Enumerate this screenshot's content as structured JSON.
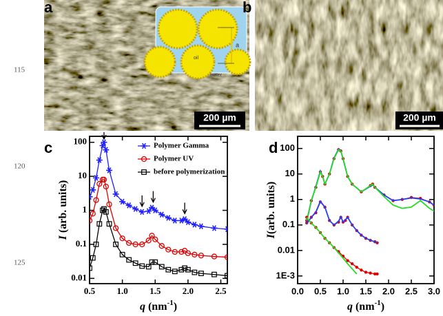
{
  "panel_labels": [
    "a",
    "b",
    "c",
    "d"
  ],
  "line_numbers": [
    "115",
    "120",
    "125"
  ],
  "scale_bars": [
    "200 µm",
    "200 µm"
  ],
  "inset": {
    "oil": "oil",
    "water": "water",
    "a": "a"
  },
  "chart_data": [
    {
      "type": "line",
      "x_label_parts": [
        "q",
        " (nm",
        "-1",
        ")"
      ],
      "y_label_parts": [
        "I",
        " (arb. units)"
      ],
      "log_y": true,
      "legend": "top-right",
      "xlim": [
        0.5,
        2.6
      ],
      "ylim": [
        0.007,
        150
      ],
      "xticks": [
        0.5,
        {
          "value": 1,
          "label": "1.0"
        },
        1.5,
        {
          "value": 2,
          "label": "2.0"
        },
        2.5
      ],
      "yticks": [
        0.01,
        0.1,
        1,
        10,
        100
      ],
      "arrows": [
        0.72,
        1.3,
        1.47,
        1.95
      ],
      "x": [
        0.5,
        0.55,
        0.6,
        0.65,
        0.7,
        0.72,
        0.75,
        0.8,
        0.9,
        1.0,
        1.1,
        1.2,
        1.3,
        1.4,
        1.45,
        1.5,
        1.6,
        1.7,
        1.8,
        1.9,
        1.95,
        2.0,
        2.1,
        2.2,
        2.4,
        2.6
      ],
      "series": [
        {
          "name": "Polymer Gamma",
          "color": "#1f1fff",
          "marker": "star",
          "values": [
            2.5,
            4,
            9,
            30,
            80,
            100,
            60,
            15,
            3,
            1.8,
            1.4,
            1.1,
            0.9,
            0.95,
            1.2,
            1.0,
            0.75,
            0.6,
            0.5,
            0.5,
            0.55,
            0.45,
            0.38,
            0.34,
            0.3,
            0.28
          ]
        },
        {
          "name": "Polymer UV",
          "color": "#e00000",
          "marker": "circle",
          "values": [
            0.5,
            0.8,
            2,
            6,
            8,
            8,
            5,
            1.5,
            0.3,
            0.15,
            0.11,
            0.1,
            0.1,
            0.13,
            0.18,
            0.14,
            0.09,
            0.07,
            0.06,
            0.06,
            0.065,
            0.055,
            0.05,
            0.047,
            0.044,
            0.042
          ]
        },
        {
          "name": "before polymerization",
          "color": "#000000",
          "marker": "square",
          "values": [
            0.02,
            0.04,
            0.1,
            0.4,
            1.0,
            1.1,
            0.9,
            0.4,
            0.1,
            0.05,
            0.035,
            0.028,
            0.023,
            0.022,
            0.03,
            0.03,
            0.022,
            0.018,
            0.016,
            0.018,
            0.02,
            0.018,
            0.015,
            0.014,
            0.013,
            0.012
          ]
        }
      ]
    },
    {
      "type": "line",
      "x_label_parts": [
        "q",
        " (nm",
        "-1",
        ")"
      ],
      "y_label_parts": [
        "I",
        "(arb. units)"
      ],
      "log_y": true,
      "xlim": [
        0,
        3
      ],
      "ylim": [
        0.0005,
        300
      ],
      "xticks": [
        {
          "value": 0,
          "label": "0.0"
        },
        0.5,
        {
          "value": 1,
          "label": "1.0"
        },
        1.5,
        {
          "value": 2,
          "label": "2.0"
        },
        2.5,
        {
          "value": 3,
          "label": "3.0"
        }
      ],
      "yticks": [
        {
          "value": 0.001,
          "label": "1E-3"
        },
        0.01,
        0.1,
        1,
        10,
        100
      ],
      "series": [
        {
          "color": "#e00000",
          "marker": "dot",
          "x": [
            0.2,
            0.3,
            0.4,
            0.5,
            0.55,
            0.6,
            0.7,
            0.8,
            0.9,
            0.95,
            1.0,
            1.1,
            1.2,
            1.4,
            1.6,
            1.65,
            1.7,
            1.9,
            2.1,
            2.3,
            2.5,
            2.7,
            2.9,
            3.0
          ],
          "values": [
            0.15,
            0.9,
            3,
            12,
            8,
            4,
            10,
            40,
            90,
            80,
            40,
            8,
            4,
            2,
            3.5,
            4,
            3,
            1.5,
            0.9,
            1.0,
            1.2,
            1.1,
            0.8,
            0.6
          ]
        },
        {
          "color": "#1f3fff",
          "marker": "none",
          "x": [
            0.2,
            0.3,
            0.4,
            0.5,
            0.55,
            0.6,
            0.7,
            0.8,
            0.9,
            0.95,
            1.0,
            1.1,
            1.2,
            1.4,
            1.6,
            1.65,
            1.7,
            1.9,
            2.1,
            2.3,
            2.5,
            2.7,
            2.9,
            3.0
          ],
          "values": [
            0.14,
            0.85,
            3.2,
            13,
            8,
            4,
            10,
            42,
            95,
            82,
            38,
            8,
            4,
            2,
            3.3,
            3.8,
            3,
            1.5,
            0.9,
            1.0,
            1.15,
            1.05,
            0.8,
            0.6
          ]
        },
        {
          "color": "#22dd22",
          "marker": "none",
          "x": [
            0.2,
            0.3,
            0.4,
            0.5,
            0.55,
            0.6,
            0.7,
            0.8,
            0.9,
            0.95,
            1.0,
            1.1,
            1.2,
            1.4,
            1.6,
            1.65,
            1.7,
            1.9,
            2.1,
            2.3,
            2.5,
            2.7,
            2.9,
            3.0
          ],
          "values": [
            0.15,
            0.9,
            3,
            12,
            8,
            4,
            10,
            40,
            90,
            80,
            40,
            8,
            4,
            2,
            3.5,
            4,
            3,
            1.3,
            0.6,
            0.45,
            0.5,
            0.9,
            0.45,
            0.35
          ]
        },
        {
          "color": "#e00000",
          "marker": "dot",
          "x": [
            0.2,
            0.3,
            0.4,
            0.5,
            0.6,
            0.7,
            0.8,
            0.9,
            0.95,
            1.0,
            1.05,
            1.1,
            1.2,
            1.3,
            1.4,
            1.5,
            1.6,
            1.7,
            1.75
          ],
          "values": [
            0.12,
            0.2,
            0.3,
            0.8,
            0.5,
            0.15,
            0.1,
            0.13,
            0.2,
            0.13,
            0.15,
            0.2,
            0.1,
            0.06,
            0.04,
            0.03,
            0.025,
            0.022,
            0.02
          ]
        },
        {
          "color": "#1f3fff",
          "marker": "none",
          "x": [
            0.2,
            0.3,
            0.4,
            0.5,
            0.6,
            0.7,
            0.8,
            0.9,
            0.95,
            1.0,
            1.05,
            1.1,
            1.2,
            1.3,
            1.4,
            1.5,
            1.6,
            1.7,
            1.75
          ],
          "values": [
            0.11,
            0.2,
            0.32,
            0.85,
            0.5,
            0.15,
            0.1,
            0.14,
            0.21,
            0.13,
            0.16,
            0.2,
            0.1,
            0.06,
            0.04,
            0.03,
            0.025,
            0.022,
            0.02
          ]
        },
        {
          "color": "#e00000",
          "marker": "dot",
          "x": [
            0.2,
            0.3,
            0.4,
            0.5,
            0.6,
            0.7,
            0.8,
            0.9,
            1.0,
            1.1,
            1.2,
            1.3,
            1.4,
            1.5,
            1.6,
            1.7,
            1.75
          ],
          "values": [
            0.2,
            0.12,
            0.08,
            0.05,
            0.03,
            0.02,
            0.013,
            0.009,
            0.006,
            0.004,
            0.003,
            0.0022,
            0.0017,
            0.0014,
            0.0013,
            0.0012,
            0.0012
          ]
        },
        {
          "color": "#22dd22",
          "marker": "none",
          "x": [
            0.2,
            0.3,
            0.4,
            0.5,
            0.6,
            0.7,
            0.8,
            0.9,
            1.0,
            1.1,
            1.2,
            1.3
          ],
          "values": [
            0.2,
            0.12,
            0.08,
            0.05,
            0.03,
            0.02,
            0.013,
            0.008,
            0.005,
            0.003,
            0.0019,
            0.0012
          ]
        }
      ]
    }
  ]
}
